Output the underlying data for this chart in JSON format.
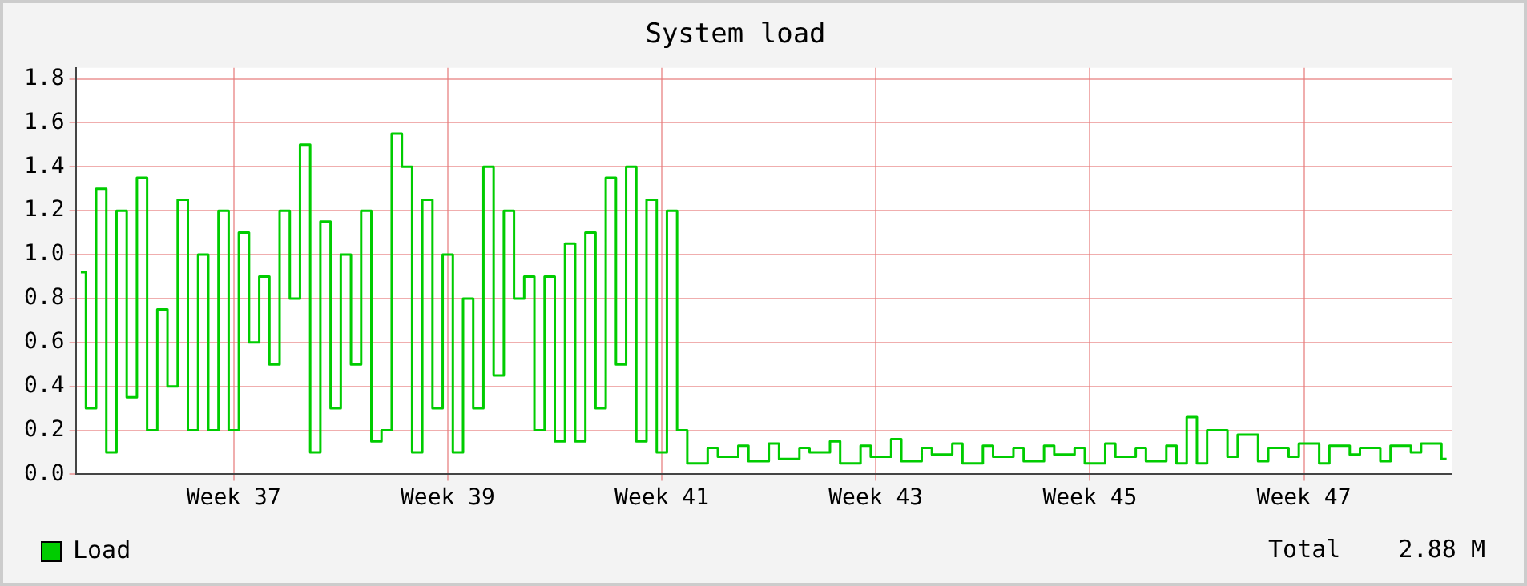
{
  "chart_data": {
    "type": "step",
    "title": "System load",
    "annotations": [
      "Total    2.88 M"
    ],
    "legend": "bottom left",
    "grid": true,
    "marker": "none",
    "line_style": "solid",
    "categories": [
      null,
      null,
      null,
      null,
      null,
      null,
      null,
      null,
      null,
      null,
      null,
      null,
      null,
      null,
      null,
      "Week 37",
      null,
      null,
      null,
      null,
      null,
      null,
      null,
      null,
      null,
      null,
      null,
      null,
      null,
      null,
      null,
      null,
      null,
      null,
      null,
      null,
      "Week 39",
      null,
      null,
      null,
      null,
      null,
      null,
      null,
      null,
      null,
      null,
      null,
      null,
      null,
      null,
      null,
      null,
      null,
      null,
      null,
      null,
      "Week 41",
      null,
      null,
      null,
      null,
      null,
      null,
      null,
      null,
      null,
      null,
      null,
      null,
      null,
      null,
      null,
      null,
      null,
      null,
      null,
      null,
      "Week 43",
      null,
      null,
      null,
      null,
      null,
      null,
      null,
      null,
      null,
      null,
      null,
      null,
      null,
      null,
      null,
      null,
      null,
      null,
      null,
      null,
      "Week 45",
      null,
      null,
      null,
      null,
      null,
      null,
      null,
      null,
      null,
      null,
      null,
      null,
      null,
      null,
      null,
      null,
      null,
      null,
      null,
      null,
      "Week 47",
      null,
      null,
      null,
      null,
      null,
      null,
      null,
      null,
      null,
      null,
      null,
      null,
      null,
      null
    ],
    "ylim": [
      0,
      1.85
    ],
    "yticks": [
      {
        "value": 0,
        "label": "0.0"
      },
      0.2,
      0.4,
      0.6,
      0.8,
      {
        "value": 1,
        "label": "1.0"
      },
      1.2,
      1.4,
      1.6,
      1.8
    ],
    "series": [
      {
        "name": "Load",
        "color": "#00cc00",
        "values": [
          0.92,
          0.3,
          1.3,
          0.1,
          1.2,
          0.35,
          1.35,
          0.2,
          0.75,
          0.4,
          1.25,
          0.2,
          1.0,
          0.2,
          1.2,
          0.2,
          1.1,
          0.6,
          0.9,
          0.5,
          1.2,
          0.8,
          1.5,
          0.1,
          1.15,
          0.3,
          1.0,
          0.5,
          1.2,
          0.15,
          0.2,
          1.55,
          1.4,
          0.1,
          1.25,
          0.3,
          1.0,
          0.1,
          0.8,
          0.3,
          1.4,
          0.45,
          1.2,
          0.8,
          0.9,
          0.2,
          0.9,
          0.15,
          1.05,
          0.15,
          1.1,
          0.3,
          1.35,
          0.5,
          1.4,
          0.15,
          1.25,
          0.1,
          1.2,
          0.2,
          0.05,
          0.05,
          0.12,
          0.08,
          0.08,
          0.13,
          0.06,
          0.06,
          0.14,
          0.07,
          0.07,
          0.12,
          0.1,
          0.1,
          0.15,
          0.05,
          0.05,
          0.13,
          0.08,
          0.08,
          0.16,
          0.06,
          0.06,
          0.12,
          0.09,
          0.09,
          0.14,
          0.05,
          0.05,
          0.13,
          0.08,
          0.08,
          0.12,
          0.06,
          0.06,
          0.13,
          0.09,
          0.09,
          0.12,
          0.05,
          0.05,
          0.14,
          0.08,
          0.08,
          0.12,
          0.06,
          0.06,
          0.13,
          0.05,
          0.26,
          0.05,
          0.2,
          0.2,
          0.08,
          0.18,
          0.18,
          0.06,
          0.12,
          0.12,
          0.08,
          0.14,
          0.14,
          0.05,
          0.13,
          0.13,
          0.09,
          0.12,
          0.12,
          0.06,
          0.13,
          0.13,
          0.1,
          0.14,
          0.14,
          0.07
        ]
      }
    ]
  }
}
